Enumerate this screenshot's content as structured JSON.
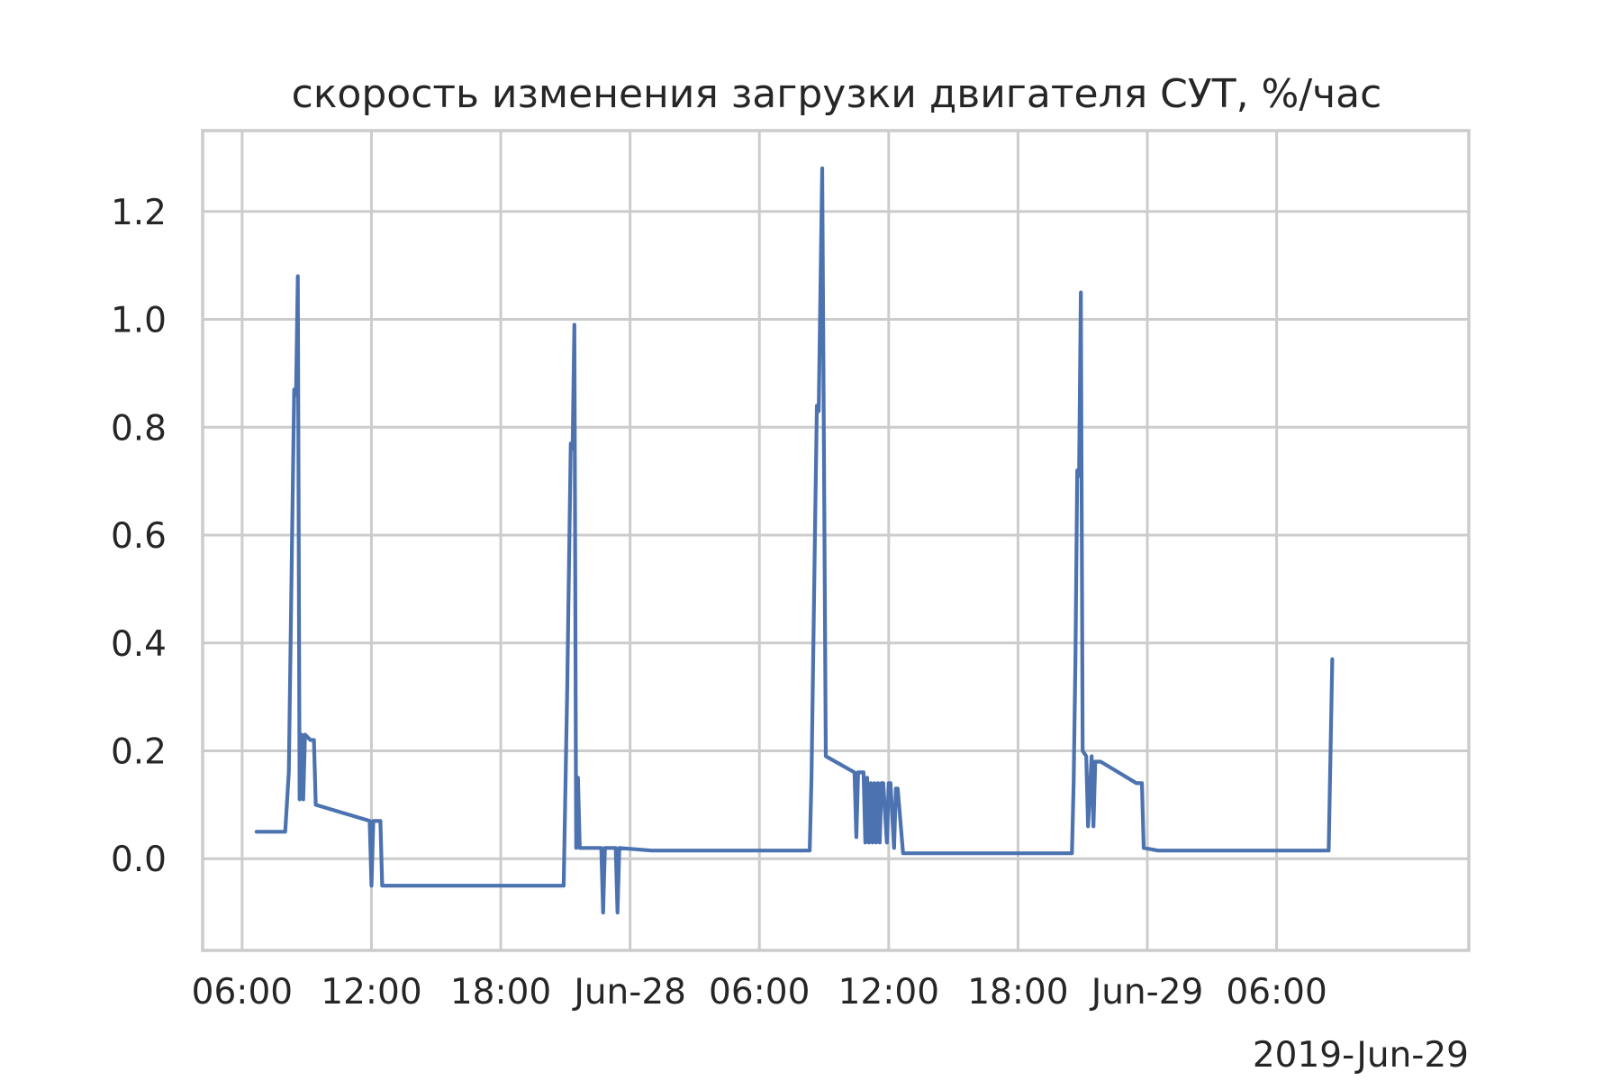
{
  "chart_data": {
    "type": "line",
    "title": "скорость изменения загрузки двигателя СУТ, %/час",
    "xlabel": "",
    "ylabel": "",
    "x_axis": {
      "type": "datetime",
      "range": [
        "2019-06-27 04:10",
        "2019-06-29 14:55"
      ],
      "tick_values": [
        "2019-06-27 06:00",
        "2019-06-27 12:00",
        "2019-06-27 18:00",
        "2019-06-28 00:00",
        "2019-06-28 06:00",
        "2019-06-28 12:00",
        "2019-06-28 18:00",
        "2019-06-29 00:00",
        "2019-06-29 06:00"
      ],
      "tick_labels": [
        "06:00",
        "12:00",
        "18:00",
        "Jun-28",
        "06:00",
        "12:00",
        "18:00",
        "Jun-29",
        "06:00"
      ],
      "offset_label": "2019-Jun-29"
    },
    "y_axis": {
      "range": [
        -0.17,
        1.35
      ],
      "tick_values": [
        0.0,
        0.2,
        0.4,
        0.6,
        0.8,
        1.0,
        1.2
      ],
      "tick_labels": [
        "0.0",
        "0.2",
        "0.4",
        "0.6",
        "0.8",
        "1.0",
        "1.2"
      ]
    },
    "grid": true,
    "legend": "none",
    "colors": {
      "series": "#4c72b0",
      "grid": "#cccccc",
      "text": "#262626"
    },
    "series": [
      {
        "x": [
          "2019-06-27 06:40",
          "2019-06-27 08:00",
          "2019-06-27 08:10",
          "2019-06-27 08:20",
          "2019-06-27 08:25",
          "2019-06-27 08:30",
          "2019-06-27 08:35",
          "2019-06-27 08:40",
          "2019-06-27 08:45",
          "2019-06-27 08:50",
          "2019-06-27 08:55",
          "2019-06-27 09:10",
          "2019-06-27 09:20",
          "2019-06-27 09:25",
          "2019-06-27 11:55",
          "2019-06-27 12:00",
          "2019-06-27 12:05",
          "2019-06-27 12:10",
          "2019-06-27 12:25",
          "2019-06-27 12:30",
          "2019-06-27 20:55",
          "2019-06-27 21:05",
          "2019-06-27 21:15",
          "2019-06-27 21:20",
          "2019-06-27 21:25",
          "2019-06-27 21:30",
          "2019-06-27 21:35",
          "2019-06-27 21:40",
          "2019-06-27 21:45",
          "2019-06-27 22:40",
          "2019-06-27 22:45",
          "2019-06-27 22:50",
          "2019-06-27 23:20",
          "2019-06-27 23:25",
          "2019-06-27 23:30",
          "2019-06-28 01:00",
          "2019-06-28 08:20",
          "2019-06-28 08:25",
          "2019-06-28 08:35",
          "2019-06-28 08:40",
          "2019-06-28 08:45",
          "2019-06-28 08:55",
          "2019-06-28 09:05",
          "2019-06-28 10:25",
          "2019-06-28 10:30",
          "2019-06-28 10:35",
          "2019-06-28 10:50",
          "2019-06-28 10:55",
          "2019-06-28 11:00",
          "2019-06-28 11:05",
          "2019-06-28 11:10",
          "2019-06-28 11:15",
          "2019-06-28 11:20",
          "2019-06-28 11:25",
          "2019-06-28 11:30",
          "2019-06-28 11:35",
          "2019-06-28 11:40",
          "2019-06-28 11:45",
          "2019-06-28 11:55",
          "2019-06-28 12:00",
          "2019-06-28 12:05",
          "2019-06-28 12:15",
          "2019-06-28 12:20",
          "2019-06-28 12:25",
          "2019-06-28 12:40",
          "2019-06-28 12:45",
          "2019-06-28 20:30",
          "2019-06-28 20:35",
          "2019-06-28 20:40",
          "2019-06-28 20:45",
          "2019-06-28 20:50",
          "2019-06-28 20:55",
          "2019-06-28 21:00",
          "2019-06-28 21:10",
          "2019-06-28 21:15",
          "2019-06-28 21:25",
          "2019-06-28 21:30",
          "2019-06-28 21:35",
          "2019-06-28 21:40",
          "2019-06-28 21:45",
          "2019-06-28 21:50",
          "2019-06-28 23:30",
          "2019-06-28 23:45",
          "2019-06-28 23:50",
          "2019-06-29 00:30",
          "2019-06-29 08:25",
          "2019-06-29 08:35"
        ],
        "values": [
          0.05,
          0.05,
          0.16,
          0.64,
          0.87,
          0.86,
          1.08,
          0.11,
          0.23,
          0.11,
          0.23,
          0.22,
          0.22,
          0.1,
          0.07,
          -0.05,
          0.07,
          0.07,
          0.07,
          -0.05,
          -0.05,
          0.31,
          0.77,
          0.76,
          0.99,
          0.02,
          0.15,
          0.02,
          0.02,
          0.02,
          -0.1,
          0.02,
          0.02,
          -0.1,
          0.02,
          0.015,
          0.015,
          0.15,
          0.62,
          0.84,
          0.83,
          1.28,
          0.19,
          0.16,
          0.04,
          0.16,
          0.16,
          0.03,
          0.15,
          0.03,
          0.14,
          0.03,
          0.14,
          0.03,
          0.14,
          0.03,
          0.14,
          0.14,
          0.03,
          0.14,
          0.14,
          0.02,
          0.13,
          0.13,
          0.01,
          0.01,
          0.01,
          0.14,
          0.37,
          0.72,
          0.71,
          1.05,
          0.2,
          0.19,
          0.06,
          0.19,
          0.06,
          0.18,
          0.18,
          0.18,
          0.18,
          0.14,
          0.14,
          0.02,
          0.015,
          0.015,
          0.37
        ]
      }
    ]
  }
}
